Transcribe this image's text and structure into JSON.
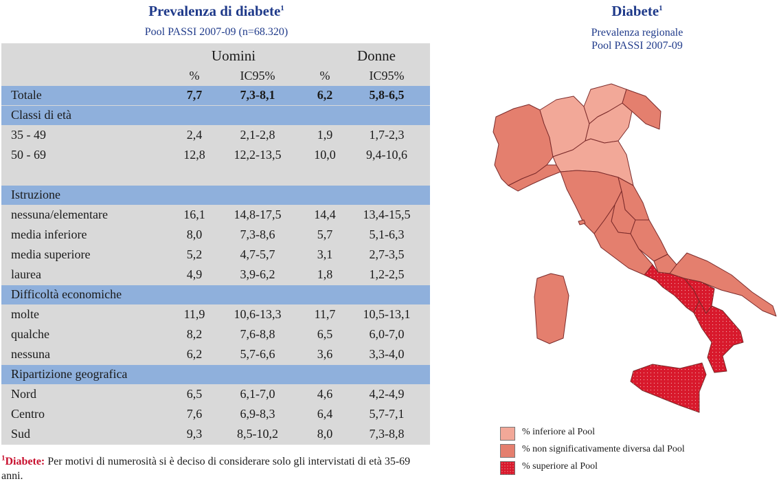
{
  "table_title": "Prevalenza di diabete",
  "table_title_sup": "1",
  "table_subtitle": "Pool PASSI 2007-09 (n=68.320)",
  "header": {
    "group_men": "Uomini",
    "group_women": "Donne",
    "col_pct": "%",
    "col_ci": "IC95%"
  },
  "rows": [
    {
      "label": "Totale",
      "men_pct": "7,7",
      "men_ci": "7,3-8,1",
      "women_pct": "6,2",
      "women_ci": "5,8-6,5"
    },
    {
      "section": "Classi di età"
    },
    {
      "label": "35 - 49",
      "men_pct": "2,4",
      "men_ci": "2,1-2,8",
      "women_pct": "1,9",
      "women_ci": "1,7-2,3"
    },
    {
      "label": "50 - 69",
      "men_pct": "12,8",
      "men_ci": "12,2-13,5",
      "women_pct": "10,0",
      "women_ci": "9,4-10,6"
    },
    {
      "section": "Istruzione"
    },
    {
      "label": "nessuna/elementare",
      "men_pct": "16,1",
      "men_ci": "14,8-17,5",
      "women_pct": "14,4",
      "women_ci": "13,4-15,5"
    },
    {
      "label": "media inferiore",
      "men_pct": "8,0",
      "men_ci": "7,3-8,6",
      "women_pct": "5,7",
      "women_ci": "5,1-6,3"
    },
    {
      "label": "media superiore",
      "men_pct": "5,2",
      "men_ci": "4,7-5,7",
      "women_pct": "3,1",
      "women_ci": "2,7-3,5"
    },
    {
      "label": "laurea",
      "men_pct": "4,9",
      "men_ci": "3,9-6,2",
      "women_pct": "1,8",
      "women_ci": "1,2-2,5"
    },
    {
      "section": "Difficoltà economiche"
    },
    {
      "label": "molte",
      "men_pct": "11,9",
      "men_ci": "10,6-13,3",
      "women_pct": "11,7",
      "women_ci": "10,5-13,1"
    },
    {
      "label": "qualche",
      "men_pct": "8,2",
      "men_ci": "7,6-8,8",
      "women_pct": "6,5",
      "women_ci": "6,0-7,0"
    },
    {
      "label": "nessuna",
      "men_pct": "6,2",
      "men_ci": "5,7-6,6",
      "women_pct": "3,6",
      "women_ci": "3,3-4,0"
    },
    {
      "section": "Ripartizione geografica"
    },
    {
      "label": "Nord",
      "men_pct": "6,5",
      "men_ci": "6,1-7,0",
      "women_pct": "4,6",
      "women_ci": "4,2-4,9"
    },
    {
      "label": "Centro",
      "men_pct": "7,6",
      "men_ci": "6,9-8,3",
      "women_pct": "6,4",
      "women_ci": "5,7-7,1"
    },
    {
      "label": "Sud",
      "men_pct": "9,3",
      "men_ci": "8,5-10,2",
      "women_pct": "8,0",
      "women_ci": "7,3-8,8"
    }
  ],
  "footnote": {
    "sup": "1",
    "term": "Diabete:",
    "text": " Per motivi di numerosità si è deciso di considerare solo gli intervistati di età 35-69 anni."
  },
  "map_title": "Diabete",
  "map_title_sup": "1",
  "map_subtitle_line1": "Prevalenza regionale",
  "map_subtitle_line2": "Pool PASSI 2007-09",
  "legend": [
    {
      "label": "% inferiore al Pool",
      "color": "#f2a898"
    },
    {
      "label": "% non significativamente diversa dal Pool",
      "color": "#e47f6e"
    },
    {
      "label": "% superiore al Pool",
      "color": "#d8192c"
    }
  ],
  "colors": {
    "title_blue": "#1f3a8a",
    "band_blue": "#8fb0dc",
    "table_gray": "#d9d9d9",
    "lower": "#f2a898",
    "same": "#e47f6e",
    "higher": "#d8192c"
  }
}
